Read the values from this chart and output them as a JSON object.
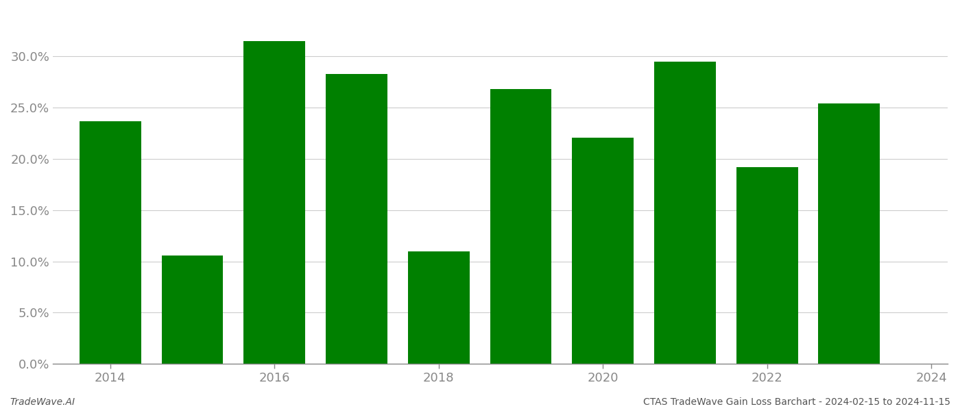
{
  "years": [
    2014,
    2015,
    2016,
    2017,
    2018,
    2019,
    2020,
    2021,
    2022,
    2023
  ],
  "values": [
    0.237,
    0.106,
    0.315,
    0.283,
    0.11,
    0.268,
    0.221,
    0.295,
    0.192,
    0.254
  ],
  "bar_color": "#008000",
  "bar_width": 0.75,
  "ylim": [
    0,
    0.345
  ],
  "yticks": [
    0.0,
    0.05,
    0.1,
    0.15,
    0.2,
    0.25,
    0.3
  ],
  "xtick_labels": [
    "2014",
    "2016",
    "2018",
    "2020",
    "2022",
    "2024"
  ],
  "xtick_positions": [
    2014,
    2016,
    2018,
    2020,
    2022,
    2024
  ],
  "xlim": [
    2013.3,
    2024.2
  ],
  "background_color": "#ffffff",
  "grid_color": "#cccccc",
  "footer_left": "TradeWave.AI",
  "footer_right": "CTAS TradeWave Gain Loss Barchart - 2024-02-15 to 2024-11-15",
  "footer_fontsize": 10,
  "tick_fontsize": 13,
  "axis_color": "#888888"
}
